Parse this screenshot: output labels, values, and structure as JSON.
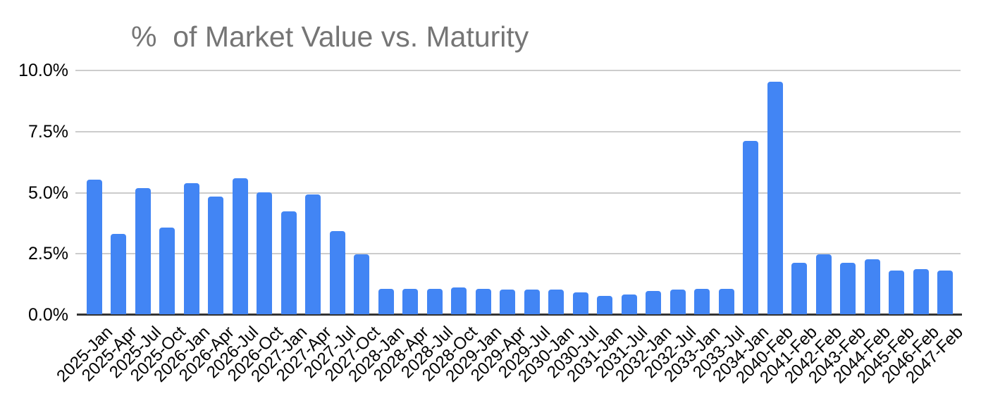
{
  "chart_data": {
    "type": "bar",
    "title": "%  of Market Value vs. Maturity",
    "xlabel": "",
    "ylabel": "",
    "ylim": [
      0,
      10
    ],
    "y_ticks_top_to_bottom": [
      "10.0%",
      "7.5%",
      "5.0%",
      "2.5%",
      "0.0%"
    ],
    "y_tick_values": [
      10.0,
      7.5,
      5.0,
      2.5,
      0.0
    ],
    "grid": true,
    "legend_position": "none",
    "categories": [
      "2025-Jan",
      "2025-Apr",
      "2025-Jul",
      "2025-Oct",
      "2026-Jan",
      "2026-Apr",
      "2026-Jul",
      "2026-Oct",
      "2027-Jan",
      "2027-Apr",
      "2027-Jul",
      "2027-Oct",
      "2028-Jan",
      "2028-Apr",
      "2028-Jul",
      "2028-Oct",
      "2029-Jan",
      "2029-Apr",
      "2029-Jul",
      "2030-Jan",
      "2030-Jul",
      "2031-Jan",
      "2031-Jul",
      "2032-Jan",
      "2032-Jul",
      "2033-Jan",
      "2033-Jul",
      "2034-Jan",
      "2040-Feb",
      "2041-Feb",
      "2042-Feb",
      "2043-Feb",
      "2044-Feb",
      "2045-Feb",
      "2046-Feb",
      "2047-Feb"
    ],
    "values": [
      5.5,
      3.3,
      5.15,
      3.55,
      5.35,
      4.8,
      5.55,
      5.0,
      4.2,
      4.9,
      3.4,
      2.45,
      1.05,
      1.05,
      1.05,
      1.1,
      1.05,
      1.0,
      1.0,
      1.0,
      0.9,
      0.75,
      0.8,
      0.95,
      1.0,
      1.05,
      1.05,
      7.1,
      9.5,
      2.1,
      2.45,
      2.1,
      2.25,
      1.8,
      1.85,
      1.8
    ],
    "colors": {
      "bar": "#4285f4",
      "gridline": "#cccccc",
      "axis_line": "#333333",
      "title_text": "#757575",
      "tick_text": "#000000",
      "background": "#ffffff"
    }
  }
}
